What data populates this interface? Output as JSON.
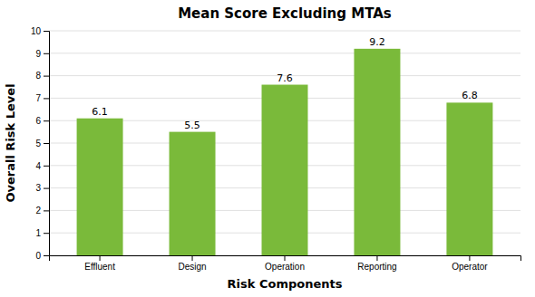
{
  "chart_data": {
    "type": "bar",
    "title": "Mean Score Excluding MTAs",
    "categories": [
      "Effluent",
      "Design",
      "Operation",
      "Reporting",
      "Operator"
    ],
    "values": [
      6.1,
      5.5,
      7.6,
      9.2,
      6.8
    ],
    "color": "#7aba3a",
    "xlabel": "Risk Components",
    "ylabel": "Overall Risk Level",
    "ylim": [
      0,
      10
    ],
    "yticks": [
      0,
      1,
      2,
      3,
      4,
      5,
      6,
      7,
      8,
      9,
      10
    ],
    "grid": true,
    "data_labels": true
  }
}
